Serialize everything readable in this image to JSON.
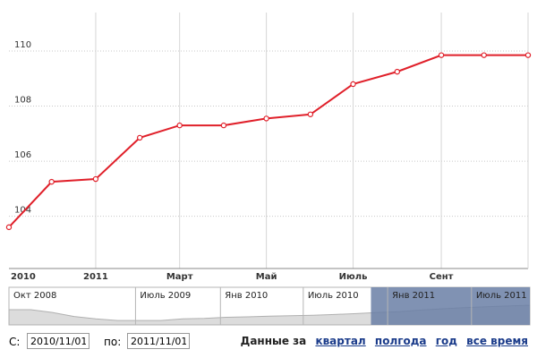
{
  "chart_data": {
    "type": "line",
    "x": [
      "2010-11-01",
      "2010-12-01",
      "2011-01-01",
      "2011-02-01",
      "2011-03-01",
      "2011-04-01",
      "2011-05-01",
      "2011-06-01",
      "2011-07-01",
      "2011-08-01",
      "2011-09-01",
      "2011-10-01",
      "2011-11-01"
    ],
    "values": [
      103.6,
      105.25,
      105.35,
      106.85,
      107.3,
      107.3,
      107.55,
      107.7,
      108.8,
      109.25,
      109.85,
      109.85,
      109.85
    ],
    "ylim": [
      102.1,
      111.4
    ],
    "y_ticks": [
      "104",
      "106",
      "108",
      "110"
    ],
    "x_ticks": [
      "2010",
      "2011",
      "Март",
      "Май",
      "Июль",
      "Сент"
    ],
    "line_color": "#e0202a",
    "grid": true
  },
  "navigator": {
    "labels": [
      "Окт 2008",
      "Июль 2009",
      "Янв 2010",
      "Июль 2010",
      "Янв 2011",
      "Июль 2011"
    ],
    "overview_values": [
      0.72,
      0.72,
      0.55,
      0.3,
      0.15,
      0.05,
      0.05,
      0.05,
      0.15,
      0.18,
      0.25,
      0.28,
      0.32,
      0.35,
      0.38,
      0.42,
      0.48,
      0.55,
      0.6,
      0.7,
      0.78,
      0.85,
      0.9,
      0.95,
      1.0
    ],
    "selected_range": [
      0.695,
      1.0
    ],
    "selection_color": "#6a7fa6"
  },
  "controls": {
    "from_label": "С:",
    "from_value": "2010/11/01",
    "to_label": "по:",
    "to_value": "2011/11/01",
    "range_prefix": "Данные за",
    "ranges": [
      "квартал",
      "полгода",
      "год",
      "все время"
    ]
  }
}
